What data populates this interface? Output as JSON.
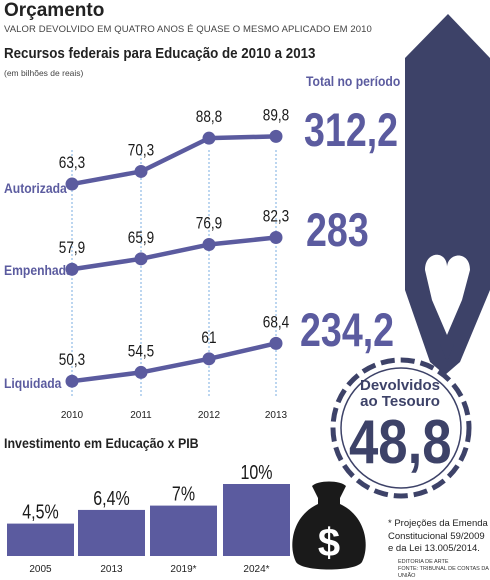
{
  "header": {
    "title": "Orçamento",
    "subtitle": "VALOR DEVOLVIDO EM QUATRO ANOS É QUASE O MESMO APLICADO EM 2010"
  },
  "summary": {
    "total_label": "Total no período",
    "totals": [
      "312,2",
      "283",
      "234,2"
    ],
    "returned_label_line1": "Devolvidos",
    "returned_label_line2": "ao Tesouro",
    "returned_value": "48,8"
  },
  "footnote": {
    "line1": "* Projeções da Emenda",
    "line2": "Constitucional 59/2009",
    "line3": "e da Lei 13.005/2014.",
    "credit1": "EDITORIA DE ARTE",
    "credit2": "FONTE: TRIBUNAL DE CONTAS DA UNIÃO"
  },
  "colors": {
    "accent": "#5b5b9f",
    "dark": "#3d4268",
    "bar": "#5b5b9f",
    "icon": "#1a1a1a"
  },
  "chart_data": [
    {
      "type": "line",
      "title": "Recursos federais para Educação de 2010 a 2013",
      "subtitle": "(em bilhões de reais)",
      "x": [
        "2010",
        "2011",
        "2012",
        "2013"
      ],
      "series": [
        {
          "name": "Autorizada",
          "values": [
            63.3,
            70.3,
            88.8,
            89.8
          ],
          "labels": [
            "63,3",
            "70,3",
            "88,8",
            "89,8"
          ]
        },
        {
          "name": "Empenhada",
          "values": [
            57.9,
            65.9,
            76.9,
            82.3
          ],
          "labels": [
            "57,9",
            "65,9",
            "76,9",
            "82,3"
          ]
        },
        {
          "name": "Liquidada",
          "values": [
            50.3,
            54.5,
            61,
            68.4
          ],
          "labels": [
            "50,3",
            "54,5",
            "61",
            "68,4"
          ]
        }
      ]
    },
    {
      "type": "bar",
      "title": "Investimento em Educação x PIB",
      "categories": [
        "2005",
        "2013",
        "2019*",
        "2024*"
      ],
      "values": [
        4.5,
        6.4,
        7,
        10
      ],
      "labels": [
        "4,5%",
        "6,4%",
        "7%",
        "10%"
      ],
      "ylim": [
        0,
        10
      ]
    }
  ]
}
